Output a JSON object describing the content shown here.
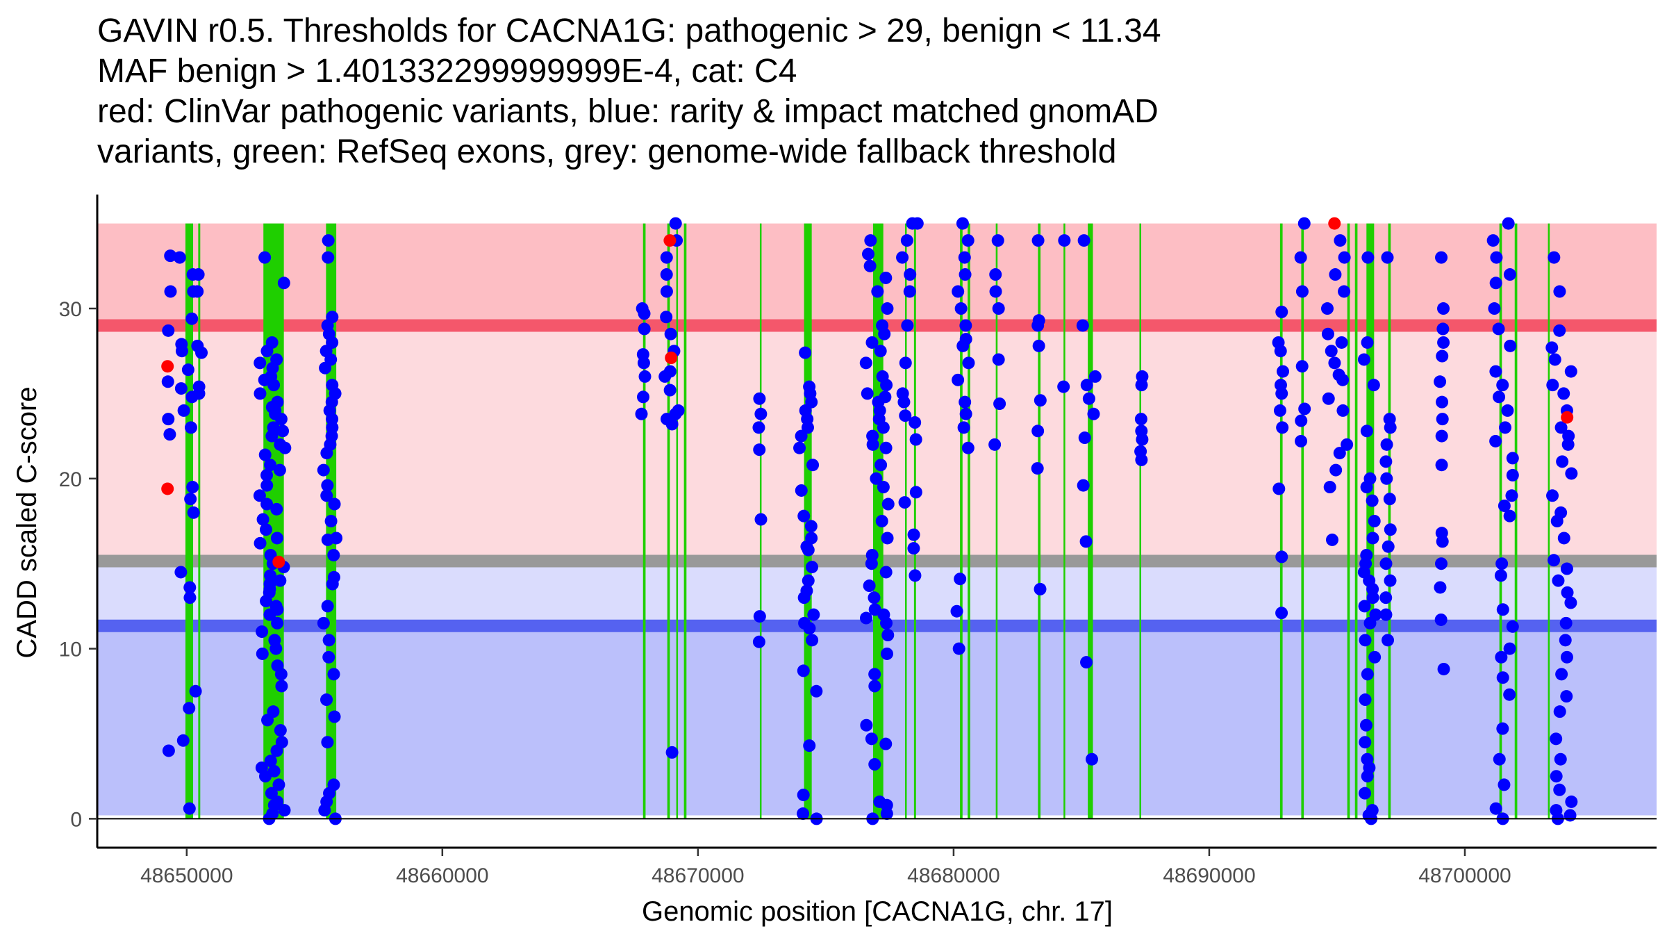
{
  "chart_data": {
    "type": "scatter",
    "title_lines": [
      "GAVIN r0.5. Thresholds for CACNA1G: pathogenic > 29, benign < 11.34",
      "MAF benign > 1.401332299999999E-4, cat: C4",
      "red: ClinVar pathogenic variants, blue: rarity & impact matched gnomAD",
      "variants, green: RefSeq exons, grey: genome-wide fallback threshold"
    ],
    "xlabel": "Genomic position [CACNA1G, chr. 17]",
    "ylabel": "CADD scaled C-score",
    "xlim": [
      48646500,
      48707500
    ],
    "ylim": [
      -1.7,
      36.7
    ],
    "x_ticks": [
      48650000,
      48660000,
      48670000,
      48680000,
      48690000,
      48700000
    ],
    "y_ticks": [
      0,
      10,
      20,
      30
    ],
    "x_tick_labels": [
      "48650000",
      "48660000",
      "48670000",
      "48680000",
      "48690000",
      "48700000"
    ],
    "y_tick_labels": [
      "0",
      "10",
      "20",
      "30"
    ],
    "thresholds": {
      "pathogenic": 29,
      "benign": 11.34,
      "fallback": 15.15,
      "top": 35
    },
    "bands": [
      {
        "name": "pathogenic-band",
        "from": 29,
        "to": 35,
        "color": "#fdbec4"
      },
      {
        "name": "intermediate-band",
        "from": 15.15,
        "to": 29,
        "color": "#fddade"
      },
      {
        "name": "lower-intermediate-band",
        "from": 11.34,
        "to": 15.15,
        "color": "#dadcfd"
      },
      {
        "name": "benign-band",
        "from": 0.2,
        "to": 11.34,
        "color": "#bbc0fb"
      }
    ],
    "threshold_lines": [
      {
        "name": "pathogenic-threshold",
        "y": 29,
        "color": "#f4576b"
      },
      {
        "name": "fallback-threshold",
        "y": 15.15,
        "color": "#999999"
      },
      {
        "name": "benign-threshold",
        "y": 11.34,
        "color": "#5562f0"
      }
    ],
    "exons": [
      [
        48649950,
        48650250
      ],
      [
        48650450,
        48650530
      ],
      [
        48653000,
        48653800
      ],
      [
        48655450,
        48655850
      ],
      [
        48667850,
        48667950
      ],
      [
        48668800,
        48668900
      ],
      [
        48669150,
        48669200
      ],
      [
        48669450,
        48669550
      ],
      [
        48672420,
        48672470
      ],
      [
        48674150,
        48674450
      ],
      [
        48676850,
        48677250
      ],
      [
        48678100,
        48678150
      ],
      [
        48678450,
        48678530
      ],
      [
        48680250,
        48680350
      ],
      [
        48680550,
        48680650
      ],
      [
        48681650,
        48681720
      ],
      [
        48683300,
        48683400
      ],
      [
        48684300,
        48684350
      ],
      [
        48685250,
        48685450
      ],
      [
        48687270,
        48687320
      ],
      [
        48692770,
        48692870
      ],
      [
        48693600,
        48693700
      ],
      [
        48695400,
        48695500
      ],
      [
        48695700,
        48695800
      ],
      [
        48696150,
        48696450
      ],
      [
        48697000,
        48697100
      ],
      [
        48701350,
        48701450
      ],
      [
        48701950,
        48702050
      ],
      [
        48703250,
        48703320
      ]
    ],
    "series": [
      {
        "name": "gnomAD",
        "color": "#0000ff",
        "clusters": [
          {
            "center": 48650000,
            "spread": 350,
            "values": [
              0.6,
              4.6,
              6.5,
              7.5,
              13.0,
              13.6,
              14.5,
              18.0,
              18.8,
              19.5,
              23.0,
              24.0,
              24.8,
              25.3,
              26.4,
              27.5,
              27.9,
              29.4,
              31.0,
              32.0,
              33.0
            ]
          },
          {
            "center": 48649300,
            "spread": 80,
            "values": [
              4.0,
              22.6,
              23.5,
              25.7,
              28.7,
              31.0,
              33.1
            ]
          },
          {
            "center": 48650500,
            "spread": 120,
            "values": [
              25.0,
              25.4,
              27.4,
              27.8,
              31.0,
              32.0
            ]
          },
          {
            "center": 48653350,
            "spread": 500,
            "values": [
              0.0,
              0.3,
              0.5,
              1.5,
              2.0,
              2.5,
              3.4,
              4.5,
              5.2,
              5.8,
              6.3,
              8.5,
              9.0,
              9.7,
              10.5,
              11.0,
              11.5,
              12.0,
              12.3,
              12.8,
              13.3,
              13.8,
              14.3,
              14.8,
              15.5,
              16.2,
              17.0,
              17.6,
              18.2,
              19.0,
              19.6,
              20.2,
              20.8,
              21.4,
              22.0,
              22.5,
              23.0,
              23.5,
              24.0,
              24.5,
              25.0,
              25.5,
              26.0,
              26.5,
              27.0,
              27.5,
              28.0,
              31.5,
              33.0,
              15.0,
              22.8,
              23.8,
              26.8,
              10.0,
              12.5,
              13.5,
              14.0,
              16.5,
              18.5,
              20.5,
              21.8,
              24.2,
              25.8,
              2.8,
              4.0,
              7.8,
              0.8,
              1.0,
              3.0
            ]
          },
          {
            "center": 48655600,
            "spread": 250,
            "values": [
              0.0,
              0.5,
              1.0,
              1.5,
              2.0,
              4.5,
              6.0,
              7.0,
              8.5,
              9.5,
              10.5,
              11.5,
              12.5,
              13.8,
              14.2,
              15.5,
              16.5,
              17.5,
              18.5,
              19.6,
              20.5,
              21.5,
              22.0,
              22.5,
              23.0,
              23.5,
              24.0,
              24.5,
              25.0,
              25.5,
              26.5,
              27.0,
              27.5,
              28.0,
              28.5,
              29.0,
              29.5,
              33.0,
              34.0,
              19.0,
              16.4
            ]
          },
          {
            "center": 48667850,
            "spread": 80,
            "values": [
              23.8,
              24.8,
              26.0,
              26.8,
              27.3,
              28.8,
              29.7,
              30.0
            ]
          },
          {
            "center": 48669000,
            "spread": 300,
            "values": [
              3.9,
              23.2,
              23.5,
              24.0,
              25.2,
              26.0,
              27.5,
              28.5,
              29.5,
              31.0,
              32.0,
              33.0,
              34.0,
              35.0,
              23.8,
              26.3
            ]
          },
          {
            "center": 48672420,
            "spread": 50,
            "values": [
              10.4,
              11.9,
              17.6,
              21.7,
              23.0,
              23.8,
              24.7
            ]
          },
          {
            "center": 48674300,
            "spread": 350,
            "values": [
              0.0,
              0.3,
              1.4,
              4.3,
              7.5,
              8.7,
              10.5,
              11.5,
              12.0,
              13.0,
              14.0,
              14.8,
              15.8,
              16.5,
              17.2,
              17.8,
              19.3,
              20.8,
              21.8,
              22.5,
              23.0,
              23.5,
              24.0,
              24.5,
              25.0,
              25.4,
              27.4,
              16.0,
              13.4,
              11.2
            ]
          },
          {
            "center": 48677000,
            "spread": 450,
            "values": [
              0.0,
              0.3,
              0.8,
              1.0,
              3.2,
              4.4,
              4.7,
              5.5,
              7.8,
              8.5,
              9.7,
              10.8,
              11.8,
              12.3,
              13.0,
              13.7,
              14.5,
              15.5,
              16.5,
              17.5,
              18.5,
              19.5,
              20.0,
              20.8,
              21.8,
              22.5,
              23.0,
              23.5,
              24.0,
              24.5,
              25.0,
              25.5,
              26.0,
              26.8,
              27.5,
              28.0,
              28.5,
              29.0,
              30.0,
              31.0,
              31.8,
              32.5,
              33.2,
              34.0,
              11.5,
              12.0,
              15.0,
              22.0,
              24.8
            ]
          },
          {
            "center": 48678300,
            "spread": 350,
            "values": [
              14.3,
              15.9,
              16.7,
              18.6,
              19.2,
              22.3,
              23.3,
              23.7,
              24.5,
              25.0,
              26.8,
              29.0,
              31.0,
              32.0,
              33.0,
              34.0,
              35.0,
              35.0
            ]
          },
          {
            "center": 48680400,
            "spread": 300,
            "values": [
              10.0,
              12.2,
              14.1,
              21.8,
              23.0,
              23.8,
              24.5,
              25.8,
              26.8,
              27.8,
              28.2,
              29.0,
              30.0,
              31.0,
              32.0,
              33.0,
              34.0,
              35.0
            ]
          },
          {
            "center": 48681700,
            "spread": 100,
            "values": [
              22.0,
              24.4,
              27.0,
              30.0,
              31.0,
              32.0,
              34.0
            ]
          },
          {
            "center": 48683300,
            "spread": 100,
            "values": [
              13.5,
              20.6,
              22.8,
              24.6,
              27.8,
              29.0,
              29.3,
              34.0
            ]
          },
          {
            "center": 48684300,
            "spread": 80,
            "values": [
              25.4,
              34.0
            ]
          },
          {
            "center": 48685300,
            "spread": 250,
            "values": [
              3.5,
              9.2,
              16.3,
              19.6,
              22.4,
              23.8,
              24.7,
              25.5,
              29.0,
              34.0,
              26.0
            ]
          },
          {
            "center": 48687300,
            "spread": 80,
            "values": [
              21.1,
              21.6,
              22.3,
              22.8,
              23.5,
              25.5,
              26.0
            ]
          },
          {
            "center": 48692800,
            "spread": 100,
            "values": [
              12.1,
              15.4,
              19.4,
              23.0,
              24.0,
              25.0,
              25.5,
              26.3,
              27.5,
              28.0,
              29.8
            ]
          },
          {
            "center": 48693650,
            "spread": 80,
            "values": [
              22.2,
              23.4,
              24.1,
              26.6,
              31.0,
              33.0,
              35.0
            ]
          },
          {
            "center": 48695000,
            "spread": 400,
            "values": [
              20.5,
              21.5,
              22.0,
              24.0,
              25.8,
              26.8,
              27.5,
              28.0,
              28.5,
              30.0,
              31.0,
              32.0,
              33.0,
              34.0,
              16.4,
              19.5,
              24.7,
              26.1
            ]
          },
          {
            "center": 48696300,
            "spread": 250,
            "values": [
              0.0,
              0.5,
              1.5,
              2.5,
              3.5,
              4.5,
              5.5,
              7.0,
              8.5,
              9.5,
              10.5,
              11.5,
              12.0,
              12.5,
              13.0,
              13.5,
              14.0,
              14.5,
              15.0,
              15.5,
              16.5,
              17.5,
              18.7,
              19.5,
              20.0,
              22.8,
              25.5,
              27.0,
              28.0,
              33.0,
              0.2,
              3.0
            ]
          },
          {
            "center": 48697000,
            "spread": 100,
            "values": [
              10.5,
              12.0,
              13.0,
              14.0,
              15.0,
              16.0,
              17.0,
              18.8,
              20.0,
              21.0,
              22.0,
              23.0,
              23.5,
              33.0
            ]
          },
          {
            "center": 48699100,
            "spread": 80,
            "values": [
              8.8,
              11.7,
              13.6,
              15.0,
              16.3,
              16.8,
              20.8,
              22.5,
              23.5,
              24.5,
              25.7,
              27.2,
              28.0,
              28.8,
              30.0,
              33.0
            ]
          },
          {
            "center": 48701500,
            "spread": 400,
            "values": [
              0.0,
              0.6,
              2.0,
              3.5,
              5.3,
              7.3,
              8.3,
              9.5,
              10.0,
              11.3,
              12.3,
              14.3,
              15.0,
              17.8,
              18.4,
              19.0,
              20.2,
              21.2,
              22.2,
              23.0,
              24.0,
              24.8,
              25.5,
              26.3,
              27.8,
              28.8,
              30.0,
              31.5,
              32.0,
              33.0,
              34.0,
              35.0
            ]
          },
          {
            "center": 48703800,
            "spread": 400,
            "values": [
              0.0,
              0.2,
              0.5,
              1.0,
              1.7,
              2.5,
              3.5,
              4.7,
              6.3,
              7.2,
              8.5,
              9.5,
              10.5,
              11.5,
              12.7,
              13.3,
              14.0,
              14.7,
              15.2,
              16.5,
              17.5,
              18.0,
              19.0,
              20.3,
              21.0,
              22.0,
              22.5,
              23.0,
              24.0,
              25.0,
              25.5,
              26.3,
              27.0,
              27.7,
              28.7,
              31.0,
              33.0
            ]
          }
        ]
      },
      {
        "name": "ClinVar pathogenic",
        "color": "#ff0000",
        "points": [
          {
            "x": 48649250,
            "y": 26.6
          },
          {
            "x": 48649250,
            "y": 19.4
          },
          {
            "x": 48653600,
            "y": 15.1
          },
          {
            "x": 48668900,
            "y": 34.0
          },
          {
            "x": 48668950,
            "y": 27.1
          },
          {
            "x": 48694900,
            "y": 35.0
          },
          {
            "x": 48704000,
            "y": 23.6
          }
        ]
      }
    ]
  }
}
